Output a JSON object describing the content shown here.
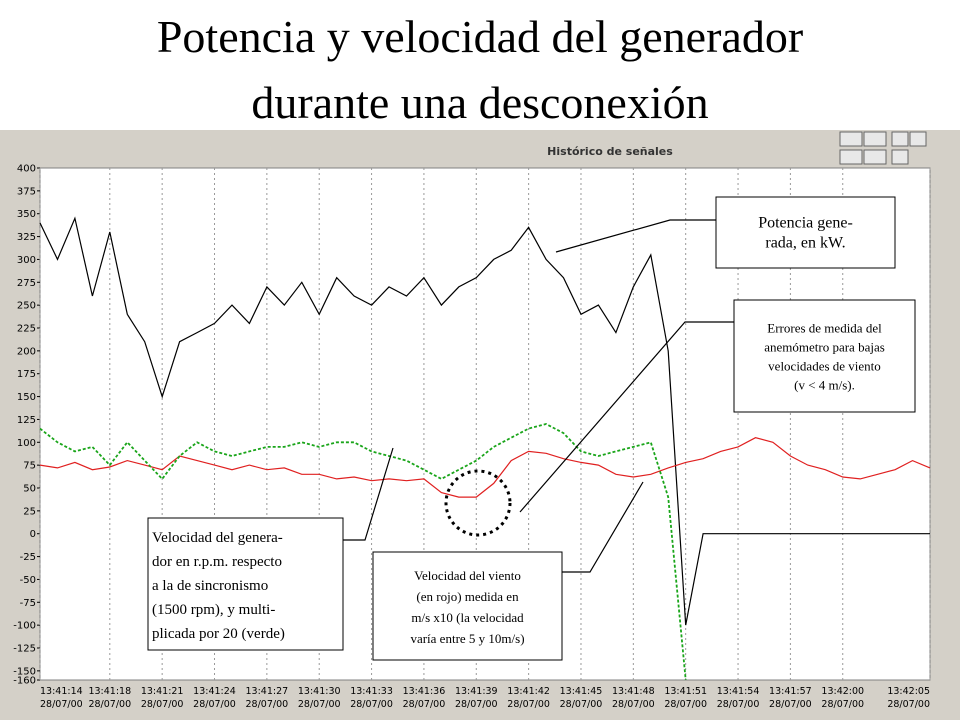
{
  "slide_title": [
    "Potencia y velocidad del generador",
    "durante una desconexión"
  ],
  "chart_data": {
    "type": "line",
    "title": "Histórico de señales",
    "x": [
      "13:41:14",
      "13:41:15",
      "13:41:16",
      "13:41:17",
      "13:41:18",
      "13:41:19",
      "13:41:20",
      "13:41:21",
      "13:41:22",
      "13:41:23",
      "13:41:24",
      "13:41:25",
      "13:41:26",
      "13:41:27",
      "13:41:28",
      "13:41:29",
      "13:41:30",
      "13:41:31",
      "13:41:32",
      "13:41:33",
      "13:41:34",
      "13:41:35",
      "13:41:36",
      "13:41:37",
      "13:41:38",
      "13:41:39",
      "13:41:40",
      "13:41:41",
      "13:41:42",
      "13:41:43",
      "13:41:44",
      "13:41:45",
      "13:41:46",
      "13:41:47",
      "13:41:48",
      "13:41:49",
      "13:41:50",
      "13:41:51",
      "13:41:52",
      "13:41:53",
      "13:41:54",
      "13:41:55",
      "13:41:56",
      "13:41:57",
      "13:41:58",
      "13:41:59",
      "13:42:00",
      "13:42:01",
      "13:42:02",
      "13:42:03",
      "13:42:04",
      "13:42:05"
    ],
    "x_date": "28/07/00",
    "xticks": [
      "13:41:14",
      "13:41:18",
      "13:41:21",
      "13:41:24",
      "13:41:27",
      "13:41:30",
      "13:41:33",
      "13:41:36",
      "13:41:39",
      "13:41:42",
      "13:41:45",
      "13:41:48",
      "13:41:51",
      "13:41:54",
      "13:41:57",
      "13:42:00",
      "13:42:05"
    ],
    "ylim": [
      -160,
      400
    ],
    "yticks": [
      400,
      375,
      350,
      325,
      300,
      275,
      250,
      225,
      200,
      175,
      150,
      125,
      100,
      75,
      50,
      25,
      0,
      -25,
      -50,
      -75,
      -100,
      -125,
      -150,
      -160
    ],
    "grid": "x",
    "series": [
      {
        "name": "Potencia",
        "color": "#000000",
        "dashed": false,
        "values": [
          340,
          300,
          345,
          260,
          330,
          240,
          210,
          150,
          210,
          220,
          230,
          250,
          230,
          270,
          250,
          275,
          240,
          280,
          260,
          250,
          270,
          260,
          280,
          250,
          270,
          280,
          300,
          310,
          335,
          300,
          280,
          240,
          250,
          220,
          270,
          305,
          200,
          -100,
          0,
          0,
          0,
          0,
          0,
          0,
          0,
          0,
          0,
          0,
          0,
          0,
          0,
          0
        ]
      },
      {
        "name": "Velocidad del viento",
        "color": "#e02020",
        "dashed": false,
        "values": [
          75,
          72,
          78,
          70,
          73,
          80,
          75,
          70,
          85,
          80,
          75,
          70,
          75,
          70,
          72,
          65,
          65,
          60,
          62,
          58,
          60,
          58,
          60,
          45,
          40,
          40,
          55,
          80,
          90,
          88,
          82,
          78,
          75,
          65,
          62,
          65,
          72,
          78,
          82,
          90,
          95,
          105,
          100,
          85,
          75,
          70,
          62,
          60,
          65,
          70,
          80,
          72
        ]
      },
      {
        "name": "Velocidad del generador",
        "color": "#1aa51a",
        "dashed": true,
        "values": [
          115,
          100,
          90,
          95,
          75,
          100,
          80,
          60,
          85,
          100,
          90,
          85,
          90,
          95,
          95,
          100,
          95,
          100,
          100,
          90,
          85,
          80,
          70,
          60,
          70,
          80,
          95,
          105,
          115,
          120,
          110,
          90,
          85,
          90,
          95,
          100,
          40,
          -160,
          null,
          null,
          null,
          null,
          null,
          null,
          null,
          null,
          null,
          null,
          null,
          null,
          null,
          null
        ]
      }
    ]
  },
  "annotations": [
    {
      "lines": [
        "Potencia gene-",
        "rada, en kW."
      ]
    },
    {
      "lines": [
        "Errores de medida del",
        "anemómetro para bajas",
        "velocidades de viento",
        "(v < 4 m/s)."
      ]
    },
    {
      "lines": [
        "Velocidad del genera-",
        "dor en r.p.m. respecto",
        "a la de  sincronismo",
        "(1500 rpm), y multi-",
        "plicada por 20 (verde)"
      ]
    },
    {
      "lines": [
        "Velocidad del viento",
        "(en rojo) medida en",
        "m/s x10 (la velocidad",
        "varía entre 5 y 10m/s)"
      ]
    }
  ]
}
